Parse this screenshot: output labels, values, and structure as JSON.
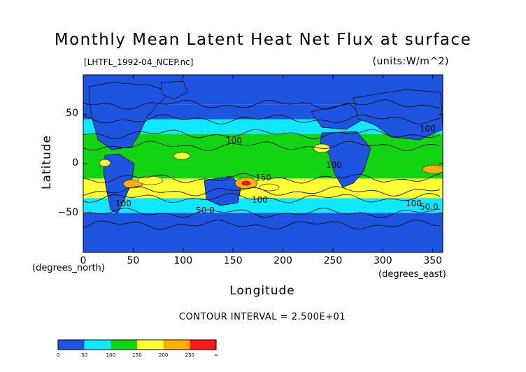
{
  "chart_data": {
    "type": "heatmap",
    "title": "Monthly Mean Latent Heat Net Flux at surface",
    "subtitle": "[LHTFL_1992-04_NCEP.nc]",
    "units": "(units:W/m^2)",
    "xlabel": "Longitude",
    "ylabel": "Latitude",
    "x_unit_label": "(degrees_east)",
    "y_unit_label": "(degrees_north)",
    "xlim": [
      0,
      360
    ],
    "ylim": [
      -90,
      90
    ],
    "x_ticks": [
      "0",
      "50",
      "100",
      "150",
      "200",
      "250",
      "300",
      "350"
    ],
    "y_ticks": [
      "50",
      "0",
      "−50"
    ],
    "contour_interval": "CONTOUR INTERVAL = 2.500E+01",
    "contour_labels": [
      "100",
      "100",
      "100",
      "100",
      "50.0",
      "50.0",
      "100",
      "150",
      "100"
    ],
    "colorbar": {
      "labels": [
        "0",
        "50",
        "100",
        "150",
        "200",
        "250",
        "∞"
      ],
      "colors": [
        "#1e55e0",
        "#10e8ff",
        "#12d412",
        "#ffff33",
        "#ffb000",
        "#ff1a1a"
      ]
    },
    "latitude_bands": [
      {
        "lat": [
          60,
          90
        ],
        "value": 25
      },
      {
        "lat": [
          45,
          60
        ],
        "value": 45
      },
      {
        "lat": [
          30,
          45
        ],
        "value": 75
      },
      {
        "lat": [
          -15,
          30
        ],
        "value": 125
      },
      {
        "lat": [
          -35,
          -15
        ],
        "value": 155
      },
      {
        "lat": [
          -50,
          -35
        ],
        "value": 75
      },
      {
        "lat": [
          -90,
          -50
        ],
        "value": 25
      }
    ]
  }
}
